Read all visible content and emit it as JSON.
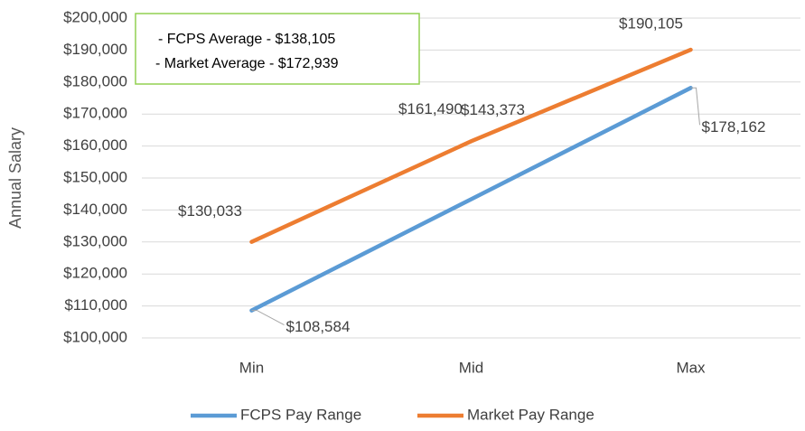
{
  "chart_data": {
    "type": "line",
    "y_label": "Annual Salary",
    "annotations": [
      "- FCPS Average - $138,105",
      "- Market Average - $172,939"
    ],
    "categories": [
      "Min",
      "Mid",
      "Max"
    ],
    "series": [
      {
        "name": "FCPS Pay Range",
        "color": "#5b9bd5",
        "values": [
          108584,
          143373,
          178162
        ],
        "value_labels": [
          "$108,584",
          "$143,373",
          "$178,162"
        ]
      },
      {
        "name": "Market Pay Range",
        "color": "#ed7d31",
        "values": [
          130033,
          161490,
          190105
        ],
        "value_labels": [
          "$130,033",
          "$161,490",
          "$190,105"
        ]
      }
    ],
    "ylim": [
      100000,
      200000
    ],
    "yticks": [
      {
        "value": 100000,
        "label": "$100,000"
      },
      {
        "value": 110000,
        "label": "$110,000"
      },
      {
        "value": 120000,
        "label": "$120,000"
      },
      {
        "value": 130000,
        "label": "$130,000"
      },
      {
        "value": 140000,
        "label": "$140,000"
      },
      {
        "value": 150000,
        "label": "$150,000"
      },
      {
        "value": 160000,
        "label": "$160,000"
      },
      {
        "value": 170000,
        "label": "$170,000"
      },
      {
        "value": 180000,
        "label": "$180,000"
      },
      {
        "value": 190000,
        "label": "$190,000"
      },
      {
        "value": 200000,
        "label": "$200,000"
      }
    ],
    "grid": true,
    "legend": "bottom"
  }
}
